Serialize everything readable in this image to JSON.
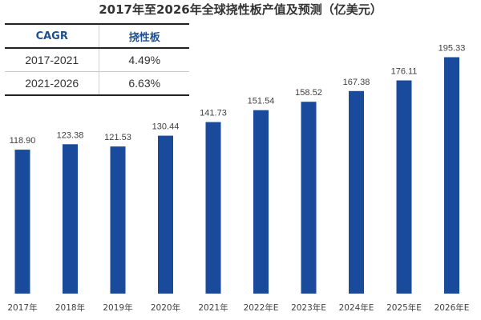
{
  "colors": {
    "bar": "#1a4a9c",
    "title": "#333333",
    "header_text": "#1f4f8f"
  },
  "cagr_table": {
    "headers": [
      "CAGR",
      "挠性板"
    ],
    "rows": [
      {
        "period": "2017-2021",
        "value": "4.49%"
      },
      {
        "period": "2021-2026",
        "value": "6.63%"
      }
    ]
  },
  "chart_data": {
    "type": "bar",
    "title": "2017年至2026年全球挠性板产值及预测（亿美元）",
    "categories": [
      "2017年",
      "2018年",
      "2019年",
      "2020年",
      "2021年",
      "2022年E",
      "2023年E",
      "2024年E",
      "2025年E",
      "2026年E"
    ],
    "values": [
      118.9,
      123.38,
      121.53,
      130.44,
      141.73,
      151.54,
      158.52,
      167.38,
      176.11,
      195.33
    ],
    "value_labels": [
      "118.90",
      "123.38",
      "121.53",
      "130.44",
      "141.73",
      "151.54",
      "158.52",
      "167.38",
      "176.11",
      "195.33"
    ],
    "xlabel": "",
    "ylabel": "",
    "ylim": [
      0,
      210
    ],
    "grid": false,
    "legend": "none"
  }
}
